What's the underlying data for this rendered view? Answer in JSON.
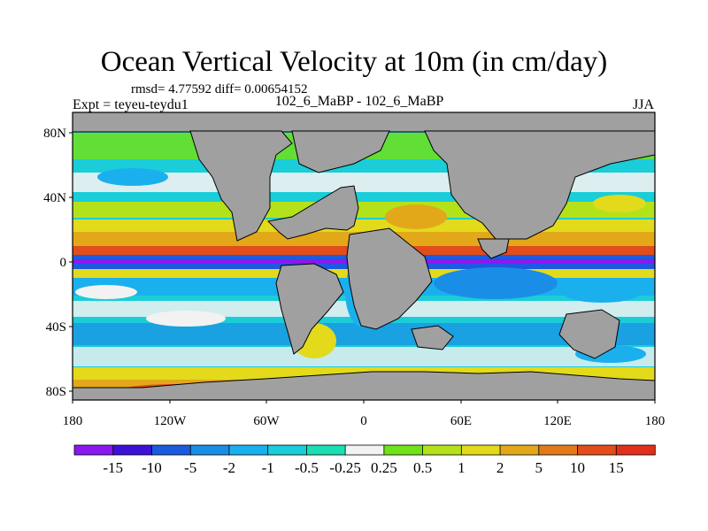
{
  "header": {
    "title": "Ocean Vertical Velocity at 10m (in cm/day)",
    "stats": "rmsd= 4.77592  diff= 0.00654152",
    "experiment": "Expt = teyeu-teydu1",
    "comparison": "102_6_MaBP - 102_6_MaBP",
    "season": "JJA"
  },
  "map": {
    "land_color": "#a0a0a0",
    "lat_ticks": [
      "80N",
      "40N",
      "0",
      "40S",
      "80S"
    ],
    "lon_ticks": [
      "180",
      "120W",
      "60W",
      "0",
      "60E",
      "120E",
      "180"
    ]
  },
  "colorbar": {
    "labels": [
      "-15",
      "-10",
      "-5",
      "-2",
      "-1",
      "-0.5",
      "-0.25",
      "0.25",
      "0.5",
      "1",
      "2",
      "5",
      "10",
      "15"
    ],
    "colors": [
      "#8a18f0",
      "#3d12d8",
      "#1c5ae0",
      "#1a8ee6",
      "#1ab0ee",
      "#1acdd8",
      "#1adfb2",
      "#f2f2f2",
      "#70e21a",
      "#b4e21a",
      "#e2da1a",
      "#e2a81a",
      "#e27a1a",
      "#e24d1a",
      "#e2301a"
    ]
  }
}
